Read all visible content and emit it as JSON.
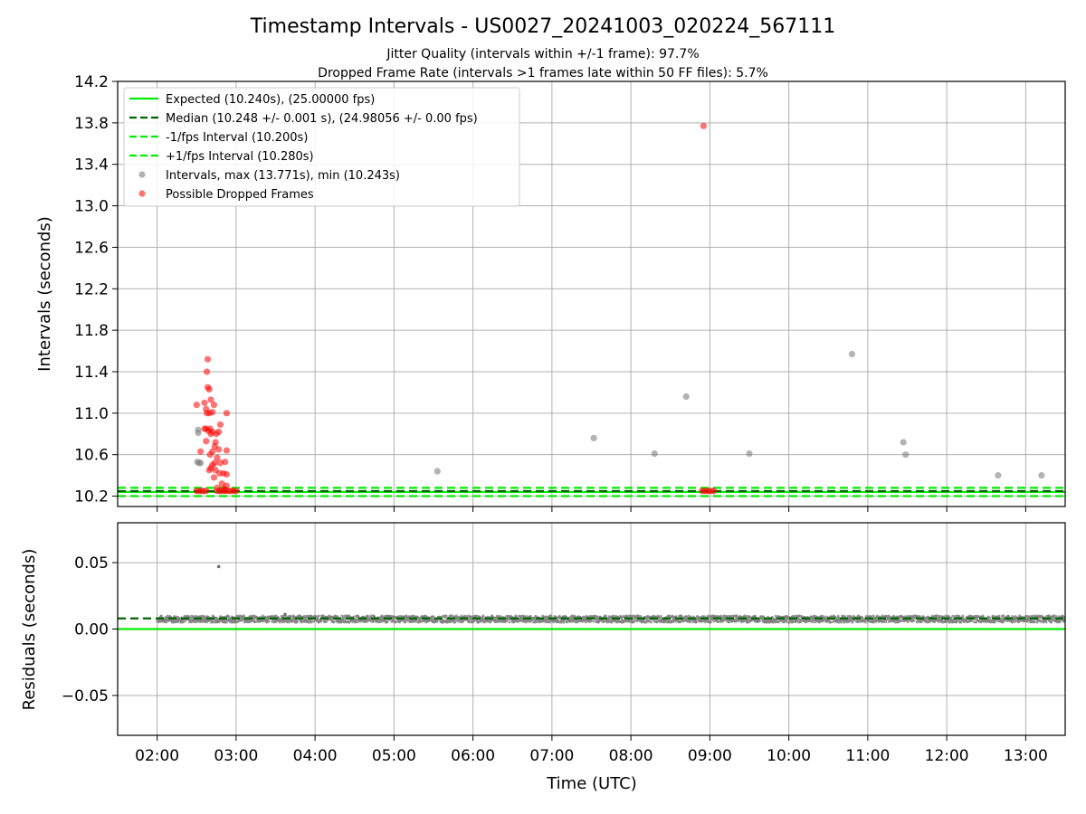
{
  "chart_data": {
    "type": "scatter",
    "title": "Timestamp Intervals - US0027_20241003_020224_567111",
    "subtitle_1": "Jitter Quality (intervals within +/-1 frame): 97.7%",
    "subtitle_2": "Dropped Frame Rate (intervals >1 frames late within 50 FF files): 5.7%",
    "xlabel": "Time (UTC)",
    "x_ticks": [
      "02:00",
      "03:00",
      "04:00",
      "05:00",
      "06:00",
      "07:00",
      "08:00",
      "09:00",
      "10:00",
      "11:00",
      "12:00",
      "13:00"
    ],
    "x_range_hours": [
      1.5,
      13.5
    ],
    "grid": true,
    "legend_position": "upper-left",
    "top_panel": {
      "ylabel": "Intervals (seconds)",
      "ylim": [
        10.1,
        14.2
      ],
      "y_ticks": [
        "10.2",
        "10.6",
        "11.0",
        "11.4",
        "11.8",
        "12.2",
        "12.6",
        "13.0",
        "13.4",
        "13.8",
        "14.2"
      ],
      "lines": [
        {
          "name": "Expected (10.240s), (25.00000 fps)",
          "y": 10.24,
          "style": "solid",
          "color": "#00ee00"
        },
        {
          "name": "Median (10.248 +/- 0.001 s), (24.98056 +/- 0.00 fps)",
          "y": 10.248,
          "style": "dashed",
          "color": "#006400"
        },
        {
          "name": "-1/fps Interval (10.200s)",
          "y": 10.2,
          "style": "dashed",
          "color": "#00ee00"
        },
        {
          "name": "+1/fps Interval (10.280s)",
          "y": 10.28,
          "style": "dashed",
          "color": "#00ee00"
        }
      ],
      "intervals_series": {
        "name": "Intervals, max (13.771s), min (10.243s)",
        "color": "#808080",
        "points": [
          [
            2.52,
            10.84
          ],
          [
            2.52,
            10.81
          ],
          [
            2.51,
            10.53
          ],
          [
            2.53,
            10.52
          ],
          [
            2.55,
            10.52
          ],
          [
            5.55,
            10.44
          ],
          [
            7.53,
            10.76
          ],
          [
            8.3,
            10.61
          ],
          [
            8.7,
            11.16
          ],
          [
            9.5,
            10.61
          ],
          [
            10.8,
            11.57
          ],
          [
            11.45,
            10.72
          ],
          [
            11.48,
            10.6
          ],
          [
            12.65,
            10.4
          ],
          [
            13.2,
            10.4
          ]
        ]
      },
      "dropped_series": {
        "name": "Possible Dropped Frames",
        "color": "#ff0000",
        "points": [
          [
            2.64,
            11.52
          ],
          [
            2.63,
            11.4
          ],
          [
            2.64,
            11.25
          ],
          [
            2.66,
            11.23
          ],
          [
            2.6,
            11.1
          ],
          [
            2.68,
            11.13
          ],
          [
            2.72,
            11.08
          ],
          [
            2.5,
            11.08
          ],
          [
            2.62,
            11.04
          ],
          [
            2.66,
            11.0
          ],
          [
            2.63,
            11.0
          ],
          [
            2.7,
            11.01
          ],
          [
            2.88,
            11.0
          ],
          [
            2.8,
            10.89
          ],
          [
            2.6,
            10.85
          ],
          [
            2.62,
            10.85
          ],
          [
            2.65,
            10.83
          ],
          [
            2.67,
            10.85
          ],
          [
            2.7,
            10.82
          ],
          [
            2.75,
            10.8
          ],
          [
            2.78,
            10.82
          ],
          [
            2.68,
            10.8
          ],
          [
            2.62,
            10.73
          ],
          [
            2.74,
            10.72
          ],
          [
            2.73,
            10.68
          ],
          [
            2.7,
            10.63
          ],
          [
            2.78,
            10.65
          ],
          [
            2.67,
            10.6
          ],
          [
            2.88,
            10.64
          ],
          [
            2.55,
            10.63
          ],
          [
            2.76,
            10.57
          ],
          [
            2.73,
            10.52
          ],
          [
            2.7,
            10.5
          ],
          [
            2.8,
            10.52
          ],
          [
            2.86,
            10.53
          ],
          [
            2.68,
            10.47
          ],
          [
            2.74,
            10.45
          ],
          [
            2.79,
            10.42
          ],
          [
            2.84,
            10.42
          ],
          [
            2.88,
            10.41
          ],
          [
            2.66,
            10.45
          ],
          [
            2.72,
            10.38
          ],
          [
            2.82,
            10.32
          ],
          [
            2.88,
            10.3
          ],
          [
            2.76,
            10.28
          ],
          [
            2.85,
            10.27
          ],
          [
            2.5,
            10.25
          ],
          [
            2.53,
            10.25
          ],
          [
            2.56,
            10.25
          ],
          [
            2.59,
            10.25
          ],
          [
            2.62,
            10.25
          ],
          [
            2.76,
            10.25
          ],
          [
            2.79,
            10.25
          ],
          [
            2.82,
            10.25
          ],
          [
            2.85,
            10.25
          ],
          [
            2.88,
            10.25
          ],
          [
            2.91,
            10.25
          ],
          [
            2.94,
            10.25
          ],
          [
            2.97,
            10.25
          ],
          [
            3.0,
            10.25
          ],
          [
            8.9,
            10.25
          ],
          [
            8.93,
            10.25
          ],
          [
            8.96,
            10.25
          ],
          [
            8.99,
            10.25
          ],
          [
            9.02,
            10.25
          ],
          [
            9.05,
            10.25
          ],
          [
            8.92,
            13.77
          ]
        ]
      }
    },
    "bottom_panel": {
      "ylabel": "Residuals (seconds)",
      "ylim": [
        -0.08,
        0.08
      ],
      "y_ticks": [
        "−0.05",
        "0.00",
        "0.05"
      ],
      "y_tick_values": [
        -0.05,
        0.0,
        0.05
      ],
      "expected_residual": 0.0,
      "median_residual": 0.008,
      "residual_band": {
        "x_start": 2.0,
        "x_end": 13.5,
        "center": 0.0075,
        "spread": 0.0025
      },
      "outliers": [
        [
          2.78,
          0.047
        ],
        [
          3.62,
          0.011
        ]
      ]
    }
  }
}
